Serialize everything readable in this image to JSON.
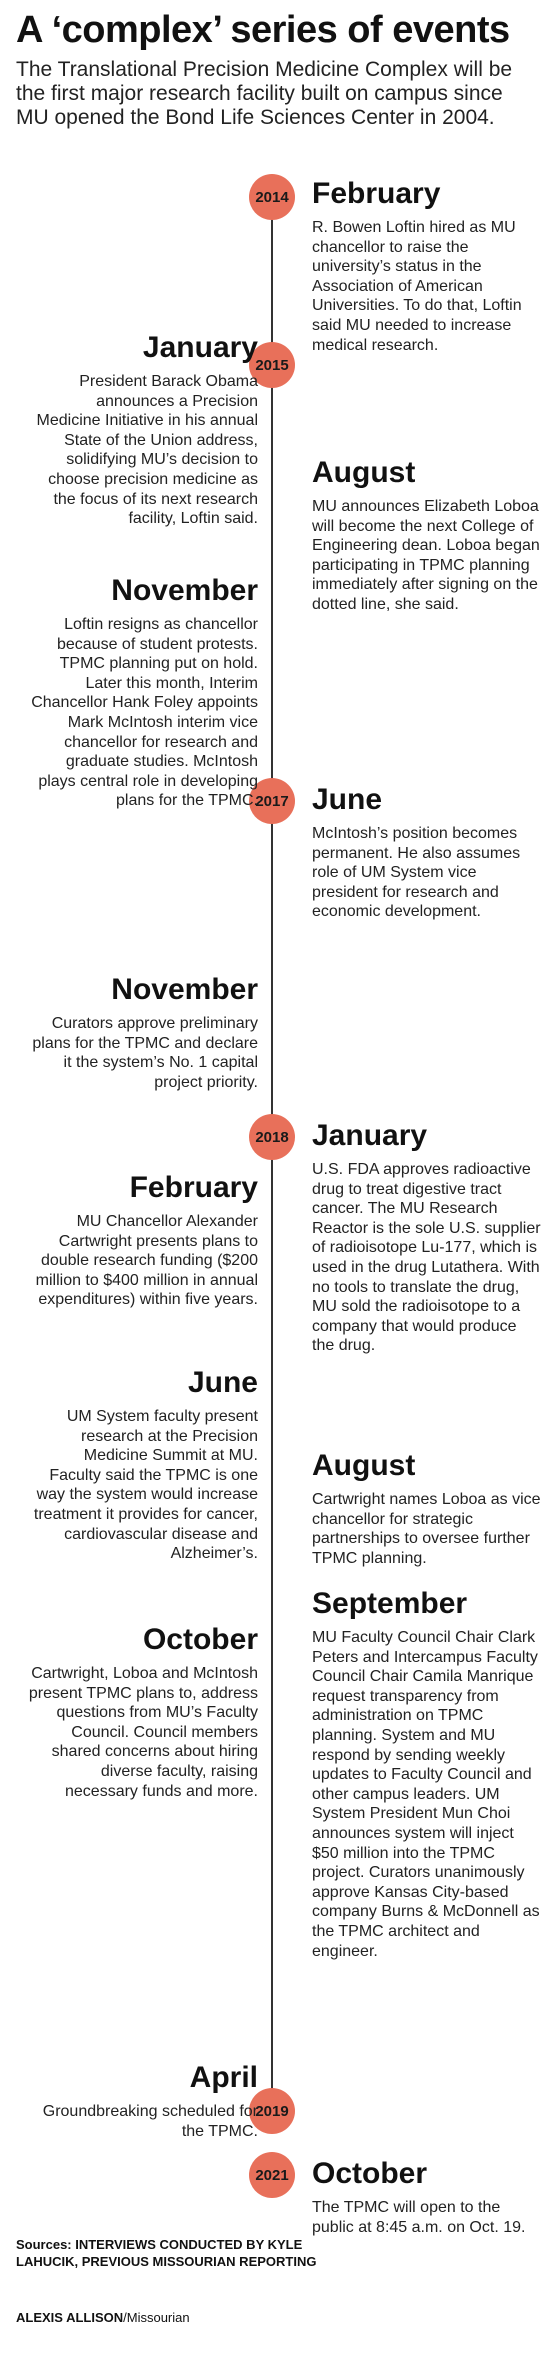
{
  "title": "A ‘complex’ series of events",
  "intro": "The Translational Precision Medicine Complex will be the first major research facility built on campus since MU opened the Bond Life Sciences Center in 2004.",
  "years": [
    "2014",
    "2015",
    "2017",
    "2018",
    "2019",
    "2021"
  ],
  "events": [
    {
      "month": "February",
      "text": "R. Bowen Loftin hired as MU chancellor to raise the university’s status in the Association of American Universities. To do that, Loftin said MU needed to increase medical research."
    },
    {
      "month": "January",
      "text": "President Barack Obama announces a Precision Medicine Initiative in his annual State of the Union address, solidifying MU’s decision to choose precision medicine as the focus of its next research facility, Loftin said."
    },
    {
      "month": "August",
      "text": "MU announces Elizabeth Loboa will become the next College of Engineering dean. Loboa began participating in TPMC planning immediately after signing on the dotted line, she said."
    },
    {
      "month": "November",
      "text": "Loftin resigns as chancellor because of student protests. TPMC planning put on hold. Later this month, Interim Chancellor Hank Foley appoints Mark McIntosh interim vice chancellor for research and graduate studies. McIntosh plays central role in developing plans for the TPMC."
    },
    {
      "month": "June",
      "text": "McIntosh’s position becomes permanent. He also assumes role of UM System vice president for research and economic development."
    },
    {
      "month": "November",
      "text": "Curators approve preliminary plans for the TPMC and declare it the system’s No. 1 capital project priority."
    },
    {
      "month": "January",
      "text": "U.S. FDA approves radioactive drug to treat digestive tract cancer. The MU Research Reactor is the sole U.S. supplier of radioisotope Lu-177, which is used in the drug Lutathera. With no tools to translate the drug, MU sold the radioisotope to a company that would produce the drug."
    },
    {
      "month": "February",
      "text": "MU Chancellor Alexander Cartwright presents plans to double research funding ($200 million to $400 million in annual expenditures) within five years."
    },
    {
      "month": "June",
      "text": "UM System faculty present research at the Precision Medicine Summit at MU. Faculty said the TPMC is one way the system would increase treatment it provides for cancer, cardiovascular disease and Alzheimer’s."
    },
    {
      "month": "August",
      "text": "Cartwright names Loboa as vice chancellor for strategic partnerships to oversee further TPMC planning."
    },
    {
      "month": "October",
      "text": "Cartwright, Loboa and McIntosh present TPMC plans to, address questions from MU’s Faculty Council. Council members shared concerns about hiring diverse faculty, raising necessary funds and more."
    },
    {
      "month": "September",
      "text": "MU Faculty Council Chair Clark Peters and Intercampus Faculty Council Chair Camila Manrique request transparency from administration on TPMC planning. System and MU respond by sending weekly updates to Faculty Council and other campus leaders. UM System President Mun Choi announces system will inject $50 million into the TPMC project. Curators unanimously approve Kansas City-based company Burns & McDonnell as the TPMC architect and engineer."
    },
    {
      "month": "April",
      "text": "Groundbreaking scheduled for the TPMC."
    },
    {
      "month": "October",
      "text": "The TPMC will open to the public at 8:45 a.m. on Oct. 19."
    }
  ],
  "sources": "Sources: INTERVIEWS CONDUCTED BY KYLE LAHUCIK, PREVIOUS MISSOURIAN REPORTING",
  "credit_name": "ALEXIS ALLISON",
  "credit_org": "/Missourian",
  "colors": {
    "dot": "#e8705a",
    "line": "#333333"
  }
}
